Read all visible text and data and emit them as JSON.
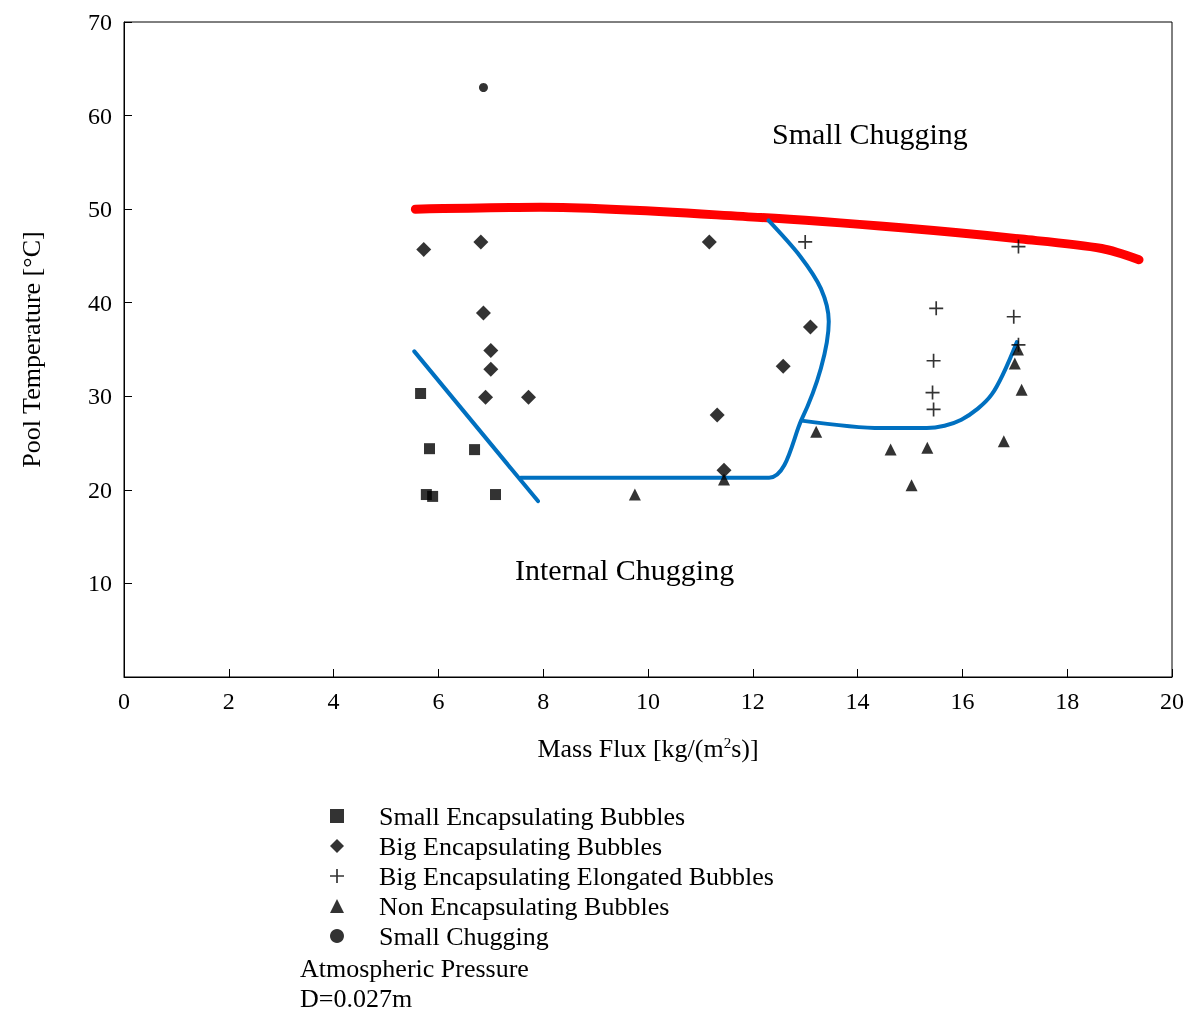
{
  "chart_data": {
    "type": "scatter",
    "xlabel": "Mass Flux [kg/(m$^{2}$s)]",
    "ylabel": "Pool Temperature [°C]",
    "xlim": [
      0,
      20
    ],
    "xticks": [
      0,
      2,
      4,
      6,
      8,
      10,
      12,
      14,
      16,
      18,
      20
    ],
    "ylim": [
      0,
      70
    ],
    "yticks": [
      {
        "value": 0,
        "label": null
      },
      10,
      20,
      30,
      40,
      50,
      60,
      70
    ],
    "grid": false,
    "legend": "bottom",
    "series": [
      {
        "name": "Small Encapsulating Bubbles",
        "marker": "square",
        "color": "#000000",
        "x": [
          5.66,
          5.83,
          6.69,
          5.77,
          5.89,
          7.09
        ],
        "values": [
          30.3,
          24.4,
          24.3,
          19.5,
          19.3,
          19.5
        ]
      },
      {
        "name": "Big Encapsulating Bubbles",
        "marker": "diamond",
        "color": "#000000",
        "x": [
          5.72,
          6.81,
          6.86,
          7.0,
          7.0,
          6.9,
          7.72,
          11.17,
          11.32,
          11.45,
          12.58,
          13.1
        ],
        "values": [
          45.7,
          46.5,
          38.9,
          34.9,
          32.9,
          29.9,
          29.9,
          46.5,
          28.0,
          22.1,
          33.2,
          37.4
        ]
      },
      {
        "name": "Big Encapsulating Elongated Bubbles",
        "marker": "cross",
        "color": "#000000",
        "x": [
          13.0,
          17.07,
          15.5,
          16.98,
          15.45,
          15.43,
          15.45,
          17.07
        ],
        "values": [
          46.5,
          46.0,
          39.4,
          38.5,
          33.8,
          30.4,
          28.6,
          35.5
        ]
      },
      {
        "name": "Non Encapsulating Bubbles",
        "marker": "triangle",
        "color": "#000000",
        "x": [
          9.75,
          11.45,
          13.21,
          14.63,
          15.33,
          15.03,
          16.79,
          17.0,
          17.06,
          17.13
        ],
        "values": [
          19.5,
          21.1,
          26.2,
          24.3,
          24.5,
          20.5,
          25.2,
          33.5,
          35.0,
          30.7
        ]
      },
      {
        "name": "Small Chugging",
        "marker": "circle",
        "color": "#000000",
        "x": [
          6.86
        ],
        "values": [
          63.0
        ]
      },
      {
        "type": "line",
        "marker": "none",
        "color": "#ff0000",
        "x": [
          5.56,
          7.95,
          12.16,
          14.84,
          17.13,
          18.66,
          19.37
        ],
        "values": [
          50.0,
          50.2,
          49.1,
          48.0,
          46.8,
          45.8,
          44.6
        ]
      },
      {
        "type": "line",
        "marker": "none",
        "color": "#0070c0",
        "x": [
          5.54,
          7.9
        ],
        "values": [
          34.8,
          18.8
        ]
      },
      {
        "type": "line",
        "marker": "none",
        "color": "#0070c0",
        "x": [
          7.57,
          12.31,
          12.93,
          13.3,
          13.45,
          13.3,
          12.9,
          12.3
        ],
        "values": [
          21.3,
          21.3,
          27.5,
          33.0,
          38.0,
          41.5,
          45.0,
          48.8
        ]
      },
      {
        "type": "line",
        "marker": "none",
        "color": "#0070c0",
        "x": [
          12.93,
          14.45,
          15.32,
          15.98,
          16.56,
          17.04
        ],
        "values": [
          27.4,
          26.6,
          26.6,
          27.5,
          30.2,
          35.8
        ]
      }
    ],
    "annotations": [
      "Small Chugging",
      "Internal Chugging",
      "Atmospheric Pressure",
      "D=0.027m"
    ]
  }
}
